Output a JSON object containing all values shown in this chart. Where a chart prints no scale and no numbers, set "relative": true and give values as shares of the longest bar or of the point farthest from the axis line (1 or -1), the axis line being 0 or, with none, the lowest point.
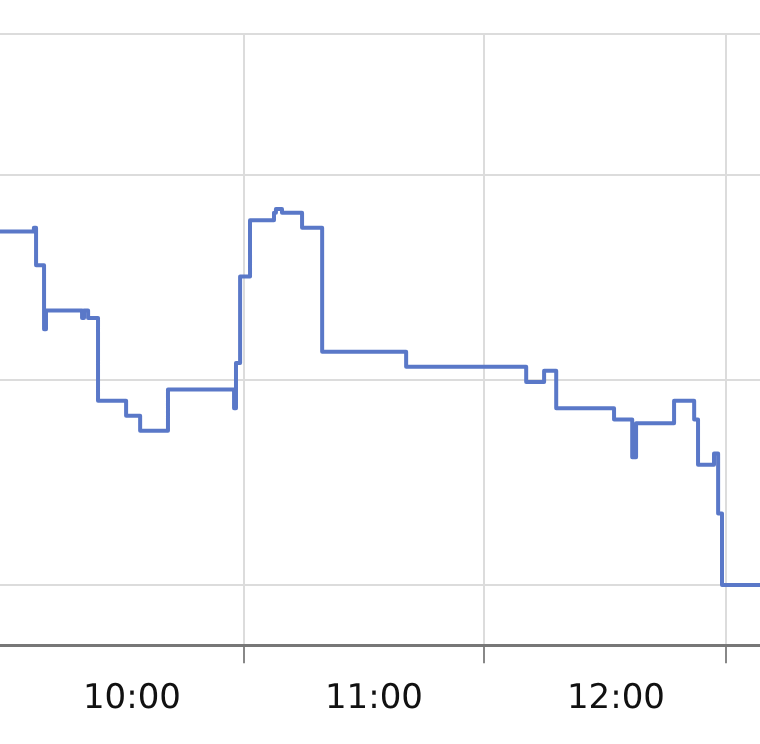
{
  "chart_data": {
    "type": "step",
    "relative": true,
    "color": "#5a78c8",
    "grid": true,
    "legend": false,
    "marker": "none",
    "x": [
      9.455,
      9.595,
      9.604,
      9.637,
      9.645,
      9.794,
      9.802,
      9.819,
      9.86,
      9.976,
      10.034,
      10.149,
      10.422,
      10.43,
      10.447,
      10.488,
      10.587,
      10.595,
      10.62,
      10.703,
      10.786,
      11.133,
      11.629,
      11.703,
      11.753,
      11.992,
      12.067,
      12.083,
      12.24,
      12.323,
      12.339,
      12.405,
      12.422,
      12.438,
      12.595
    ],
    "values": [
      0.94,
      0.95,
      0.85,
      0.68,
      0.73,
      0.71,
      0.73,
      0.71,
      0.49,
      0.45,
      0.41,
      0.52,
      0.47,
      0.59,
      0.82,
      0.97,
      0.99,
      1,
      0.99,
      0.95,
      0.62,
      0.58,
      0.54,
      0.57,
      0.47,
      0.44,
      0.34,
      0.43,
      0.49,
      0.44,
      0.32,
      0.35,
      0.19,
      0,
      0
    ],
    "xlim": [
      9.455,
      12.595
    ],
    "xticks": [
      {
        "value": 10,
        "label": "10:00"
      },
      {
        "value": 10.463,
        "label": null
      },
      {
        "value": 11,
        "label": "11:00"
      },
      {
        "value": 11.455,
        "label": null
      },
      {
        "value": 12,
        "label": "12:00"
      },
      {
        "value": 12.455,
        "label": null
      }
    ]
  }
}
